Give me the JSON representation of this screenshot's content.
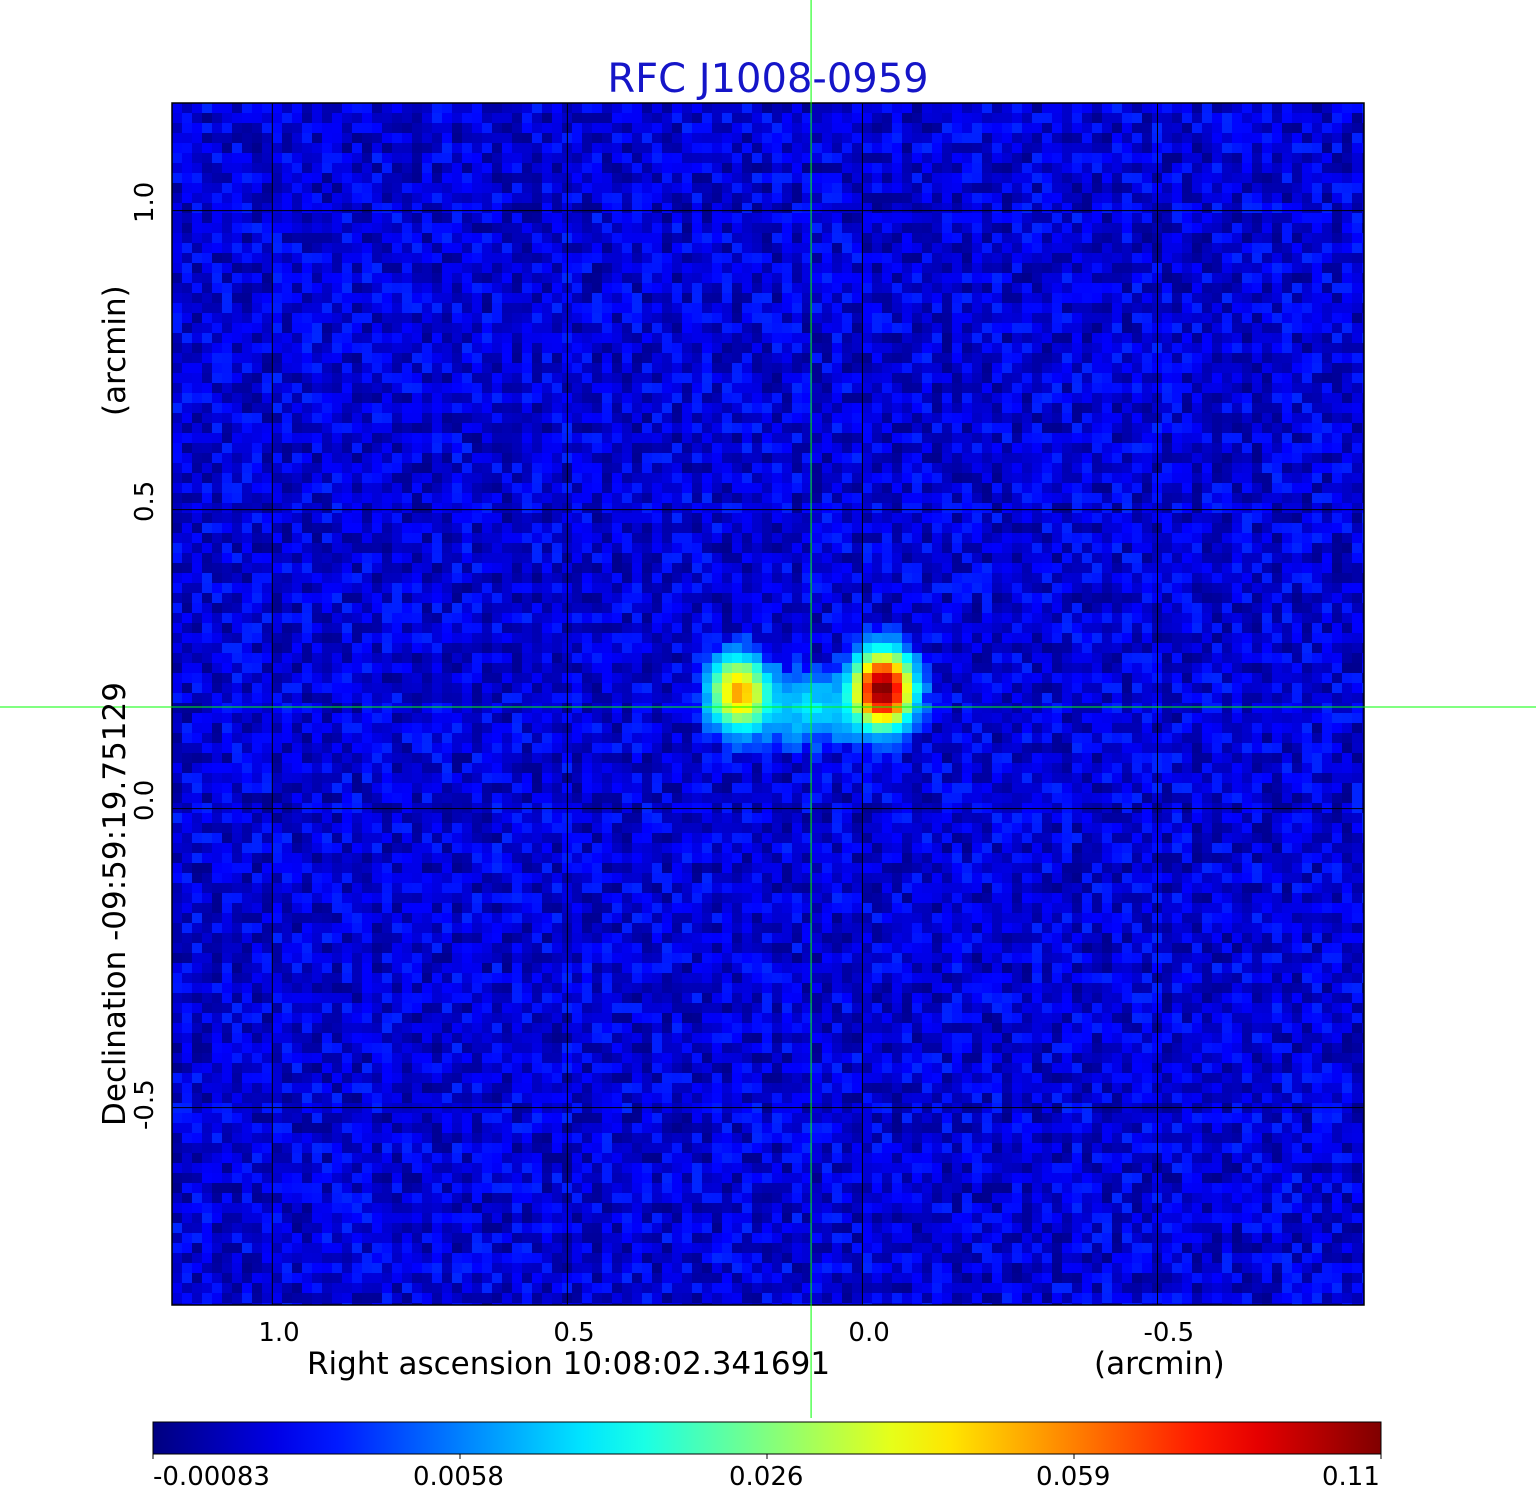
{
  "chart_data": {
    "type": "heatmap",
    "title": "RFC J1008-0959",
    "xlabel_left": "Right ascension  10:08:02.341691",
    "xlabel_right": "(arcmin)",
    "ylabel_left": "Declination  -09:59:19.75129",
    "ylabel_right": "(arcmin)",
    "x_axis": {
      "reversed": true,
      "range": [
        1.17,
        -0.85
      ],
      "ticks": [
        1.0,
        0.5,
        0.0,
        -0.5
      ],
      "tick_labels": [
        "1.0",
        "0.5",
        "0.0",
        "-0.5"
      ]
    },
    "y_axis": {
      "range": [
        -0.83,
        1.18
      ],
      "ticks": [
        1.0,
        0.5,
        0.0,
        -0.5
      ],
      "tick_labels": [
        "1.0",
        "0.5",
        "0.0",
        "-0.5"
      ]
    },
    "grid": true,
    "colormap": "jet",
    "colorbar": {
      "placement": "bottom",
      "min": -0.00083,
      "max": 0.11,
      "ticks": [
        -0.00083,
        0.0058,
        0.026,
        0.059,
        0.11
      ],
      "tick_labels": [
        "-0.00083",
        "0.0058",
        "0.026",
        "0.059",
        "0.11"
      ]
    },
    "crosshair": {
      "x": 0.087,
      "y": 0.17,
      "color": "#00ff00"
    },
    "background_level": 0.0015,
    "sources": [
      {
        "name": "left component",
        "x": 0.21,
        "y": 0.195,
        "peak": 0.052
      },
      {
        "name": "bridge",
        "x": 0.09,
        "y": 0.17,
        "peak": 0.012
      },
      {
        "name": "right component (core)",
        "x": -0.035,
        "y": 0.2,
        "peak": 0.11
      }
    ]
  }
}
